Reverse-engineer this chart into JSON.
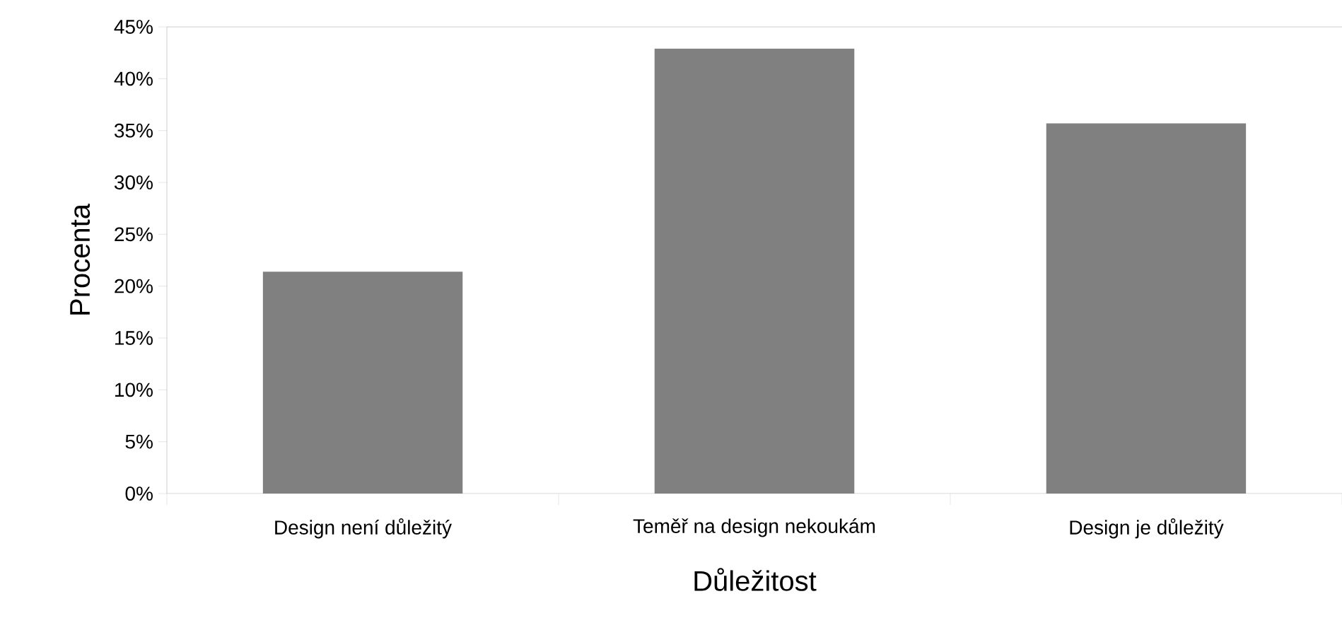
{
  "chart_data": {
    "type": "bar",
    "xlabel": "Důležitost",
    "ylabel": "Procenta",
    "categories": [
      "Design není důležitý",
      "Teměř na design nekoukám",
      "Design je důležitý"
    ],
    "values": [
      21.4,
      42.9,
      35.7
    ],
    "color": "#808080",
    "ylim": [
      0,
      45
    ],
    "yticks": [
      {
        "value": 0,
        "label": "0%"
      },
      {
        "value": 5,
        "label": "5%"
      },
      {
        "value": 10,
        "label": "10%"
      },
      {
        "value": 15,
        "label": "15%"
      },
      {
        "value": 20,
        "label": "20%"
      },
      {
        "value": 25,
        "label": "25%"
      },
      {
        "value": 30,
        "label": "30%"
      },
      {
        "value": 35,
        "label": "35%"
      },
      {
        "value": 40,
        "label": "40%"
      },
      {
        "value": 45,
        "label": "45%"
      }
    ],
    "grid": false
  }
}
